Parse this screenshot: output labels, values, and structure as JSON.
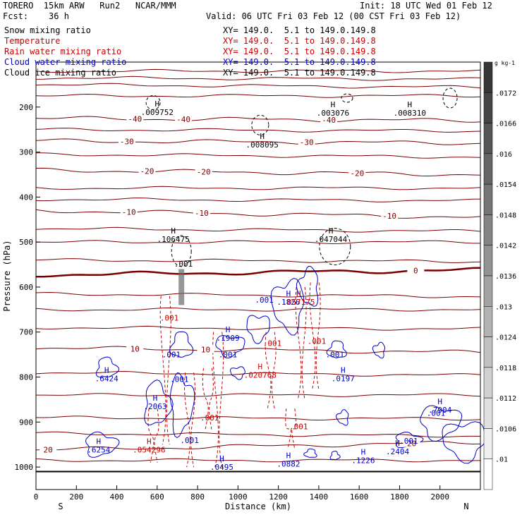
{
  "header": {
    "line1_left": "TORERO  15km ARW   Run2   NCAR/MMM",
    "line1_right": "Init: 18 UTC Wed 01 Feb 12",
    "line2_left": "Fcst:    36 h",
    "line2_right": "Valid: 06 UTC Fri 03 Feb 12 (00 CST Fri 03 Feb 12)",
    "fields": [
      {
        "label": "Snow mixing ratio",
        "xy": "XY= 149.0.  5.1 to 149.0.149.8",
        "color": "#000000"
      },
      {
        "label": "Temperature",
        "xy": "XY= 149.0.  5.1 to 149.0.149.8",
        "color": "#c80000"
      },
      {
        "label": "Rain water mixing ratio",
        "xy": "XY= 149.0.  5.1 to 149.0.149.8",
        "color": "#c80000"
      },
      {
        "label": "Cloud water mixing ratio",
        "xy": "XY= 149.0.  5.1 to 149.0.149.8",
        "color": "#0000c8"
      },
      {
        "label": "Cloud ice mixing ratio",
        "xy": "XY= 149.0.  5.1 to 149.0.149.8",
        "color": "#000000"
      }
    ]
  },
  "chart_data": {
    "type": "contour",
    "xlabel": "Distance (km)",
    "ylabel": "Pressure (hPa)",
    "xlim": [
      0,
      2200
    ],
    "ylim": [
      1050,
      100
    ],
    "xticks": [
      0,
      200,
      400,
      600,
      800,
      1000,
      1200,
      1400,
      1600,
      1800,
      2000
    ],
    "yticks": [
      200,
      300,
      400,
      500,
      600,
      700,
      800,
      900,
      1000
    ],
    "x_endpoints": {
      "left": "S",
      "right": "N"
    },
    "colorbar": {
      "unit": "g kg-1",
      "levels": [
        ".01",
        ".0106",
        ".0112",
        ".0118",
        ".0124",
        ".013",
        ".0136",
        ".0142",
        ".0148",
        ".0154",
        ".016",
        ".0166",
        ".0172"
      ]
    },
    "temperature_isotherms": [
      {
        "label": "-40",
        "p_west": 225,
        "p_east": 230,
        "label_x": [
          490,
          730,
          1450
        ]
      },
      {
        "label": "-30",
        "p_west": 275,
        "p_east": 280,
        "label_x": [
          450,
          1340
        ]
      },
      {
        "label": "-20",
        "p_west": 340,
        "p_east": 350,
        "label_x": [
          550,
          830,
          1590
        ]
      },
      {
        "label": "-10",
        "p_west": 430,
        "p_east": 445,
        "label_x": [
          460,
          820,
          1750
        ]
      },
      {
        "label": "0",
        "p_west": 573,
        "p_east": 562,
        "label_x": [
          1880
        ]
      },
      {
        "label": "10",
        "p_west": 735,
        "p_east": 745,
        "label_x": [
          490,
          840
        ]
      },
      {
        "label": "20",
        "p_west": 962,
        "p_east": 945,
        "label_x": [
          60,
          1860
        ]
      }
    ],
    "extrema_labels": [
      {
        "mark": "H",
        "value": ".009752",
        "x": 600,
        "p": 208,
        "color": "#000000"
      },
      {
        "mark": "H",
        "value": ".008095",
        "x": 1120,
        "p": 280,
        "color": "#000000"
      },
      {
        "mark": "H",
        "value": ".003076",
        "x": 1470,
        "p": 210,
        "color": "#000000"
      },
      {
        "mark": "H",
        "value": ".008310",
        "x": 1850,
        "p": 210,
        "color": "#000000"
      },
      {
        "mark": "H",
        "value": ".106475",
        "x": 680,
        "p": 490,
        "color": "#000000"
      },
      {
        "mark": "H",
        "value": ".047044",
        "x": 1460,
        "p": 490,
        "color": "#000000"
      },
      {
        "mark": "H",
        "value": ".6424",
        "x": 350,
        "p": 800,
        "color": "#0000c8"
      },
      {
        "mark": "H",
        "value": ".1909",
        "x": 950,
        "p": 710,
        "color": "#0000c8"
      },
      {
        "mark": "H",
        "value": ".1826",
        "x": 1250,
        "p": 630,
        "color": "#0000c8"
      },
      {
        "mark": "H",
        "value": ".0197",
        "x": 1520,
        "p": 800,
        "color": "#0000c8"
      },
      {
        "mark": "H",
        "value": ".2063",
        "x": 590,
        "p": 862,
        "color": "#0000c8"
      },
      {
        "mark": "H",
        "value": ".6254",
        "x": 310,
        "p": 958,
        "color": "#0000c8"
      },
      {
        "mark": "H",
        "value": ".0495",
        "x": 920,
        "p": 997,
        "color": "#0000c8"
      },
      {
        "mark": "H",
        "value": ".0882",
        "x": 1250,
        "p": 990,
        "color": "#0000c8"
      },
      {
        "mark": "H",
        "value": ".1226",
        "x": 1620,
        "p": 982,
        "color": "#0000c8"
      },
      {
        "mark": "H",
        "value": ".2404",
        "x": 1790,
        "p": 962,
        "color": "#0000c8"
      },
      {
        "mark": "H",
        "value": ".7904",
        "x": 2000,
        "p": 870,
        "color": "#0000c8"
      },
      {
        "mark": "H",
        "value": ".020768",
        "x": 1110,
        "p": 792,
        "color": "#c80000"
      },
      {
        "mark": "H",
        "value": ".054296",
        "x": 560,
        "p": 958,
        "color": "#c80000"
      },
      {
        "mark": "H",
        "value": ".057175",
        "x": 1300,
        "p": 630,
        "color": "#c80000"
      }
    ],
    "contour_value_labels": [
      {
        "value": ".001",
        "x": 730,
        "p": 548,
        "color": "#000000"
      },
      {
        "value": ".001",
        "x": 660,
        "p": 668,
        "color": "#c80000"
      },
      {
        "value": ".001",
        "x": 1170,
        "p": 725,
        "color": "#c80000"
      },
      {
        "value": ".001",
        "x": 1390,
        "p": 720,
        "color": "#c80000"
      },
      {
        "value": ".001",
        "x": 860,
        "p": 890,
        "color": "#c80000"
      },
      {
        "value": ".001",
        "x": 1300,
        "p": 910,
        "color": "#c80000"
      },
      {
        "value": ".001",
        "x": 670,
        "p": 750,
        "color": "#0000c8"
      },
      {
        "value": ".001",
        "x": 710,
        "p": 805,
        "color": "#0000c8"
      },
      {
        "value": ".001",
        "x": 760,
        "p": 940,
        "color": "#0000c8"
      },
      {
        "value": ".001",
        "x": 950,
        "p": 750,
        "color": "#0000c8"
      },
      {
        "value": ".001",
        "x": 1480,
        "p": 750,
        "color": "#0000c8"
      },
      {
        "value": ".001",
        "x": 1130,
        "p": 628,
        "color": "#0000c8"
      },
      {
        "value": ".001",
        "x": 1980,
        "p": 880,
        "color": "#0000c8"
      },
      {
        "value": ".001",
        "x": 1845,
        "p": 942,
        "color": "#0000c8"
      }
    ]
  }
}
